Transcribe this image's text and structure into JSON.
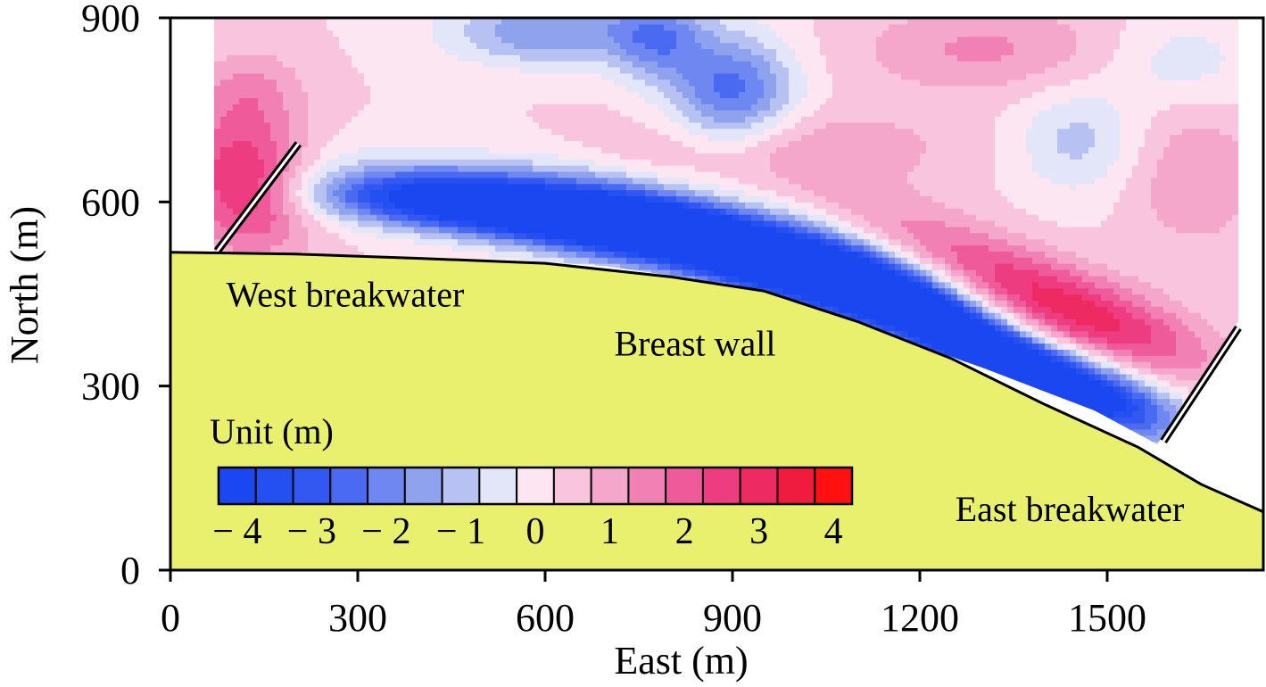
{
  "chart_data": {
    "type": "heatmap",
    "xlabel": "East (m)",
    "ylabel": "North (m)",
    "xlim": [
      0,
      1750
    ],
    "ylim": [
      0,
      900
    ],
    "xticks": [
      0,
      300,
      600,
      900,
      1200,
      1500
    ],
    "yticks": [
      0,
      300,
      600,
      900
    ],
    "colorbar": {
      "title": "Unit (m)",
      "min": -4.25,
      "max": 4.25,
      "levels": 17,
      "ticks": [
        {
          "value": -4,
          "label": "− 4"
        },
        {
          "value": -3,
          "label": "− 3"
        },
        {
          "value": -2,
          "label": "− 2"
        },
        {
          "value": -1,
          "label": "− 1"
        },
        {
          "value": 0,
          "label": "0"
        },
        {
          "value": 1,
          "label": "1"
        },
        {
          "value": 2,
          "label": "2"
        },
        {
          "value": 3,
          "label": "3"
        },
        {
          "value": 4,
          "label": "4"
        }
      ],
      "colors": [
        "#1a47f0",
        "#2450f2",
        "#3358f2",
        "#4a6af2",
        "#6f87f1",
        "#8fa2ee",
        "#b7c2f2",
        "#e3e6f8",
        "#fbe6f1",
        "#f8c4de",
        "#f4a6cb",
        "#f181b5",
        "#ef5a9b",
        "#ee3c80",
        "#ee2a62",
        "#f01c3f",
        "#ff1111"
      ]
    },
    "regions": [
      {
        "label": "West breakwater",
        "x": 280,
        "y": 430
      },
      {
        "label": "Breast wall",
        "x": 840,
        "y": 350
      },
      {
        "label": "East breakwater",
        "x": 1440,
        "y": 80
      }
    ],
    "shoreline": [
      [
        0,
        518
      ],
      [
        200,
        515
      ],
      [
        400,
        508
      ],
      [
        600,
        500
      ],
      [
        800,
        478
      ],
      [
        950,
        455
      ],
      [
        1100,
        405
      ],
      [
        1250,
        345
      ],
      [
        1400,
        270
      ],
      [
        1550,
        200
      ],
      [
        1650,
        140
      ],
      [
        1750,
        95
      ]
    ],
    "domain_outline": [
      [
        70,
        900
      ],
      [
        1710,
        900
      ],
      [
        1710,
        405
      ],
      [
        1580,
        205
      ],
      [
        1480,
        260
      ],
      [
        1300,
        330
      ],
      [
        1100,
        400
      ],
      [
        900,
        445
      ],
      [
        800,
        480
      ],
      [
        700,
        495
      ],
      [
        560,
        505
      ],
      [
        300,
        510
      ],
      [
        70,
        520
      ]
    ],
    "west_breakwater": [
      [
        75,
        520
      ],
      [
        205,
        695
      ]
    ],
    "east_breakwater": [
      [
        1590,
        210
      ],
      [
        1710,
        395
      ]
    ],
    "field": [
      {
        "x": 820,
        "y": 540,
        "sx": 260,
        "sy": 40,
        "rot": -12,
        "v": -4.1
      },
      {
        "x": 1040,
        "y": 470,
        "sx": 220,
        "sy": 38,
        "rot": -22,
        "v": -4.2
      },
      {
        "x": 1280,
        "y": 380,
        "sx": 170,
        "sy": 32,
        "rot": -32,
        "v": -4.1
      },
      {
        "x": 1470,
        "y": 295,
        "sx": 120,
        "sy": 35,
        "rot": -20,
        "v": -3.8
      },
      {
        "x": 600,
        "y": 580,
        "sx": 190,
        "sy": 35,
        "rot": -8,
        "v": -3.2
      },
      {
        "x": 400,
        "y": 600,
        "sx": 150,
        "sy": 30,
        "rot": -3,
        "v": -2.4
      },
      {
        "x": 900,
        "y": 780,
        "sx": 70,
        "sy": 65,
        "rot": 0,
        "v": -2.7
      },
      {
        "x": 600,
        "y": 880,
        "sx": 110,
        "sy": 40,
        "rot": 0,
        "v": -2.0
      },
      {
        "x": 780,
        "y": 870,
        "sx": 55,
        "sy": 50,
        "rot": 0,
        "v": -2.0
      },
      {
        "x": 1450,
        "y": 700,
        "sx": 70,
        "sy": 60,
        "rot": 0,
        "v": -1.2
      },
      {
        "x": 1620,
        "y": 830,
        "sx": 80,
        "sy": 50,
        "rot": 0,
        "v": -0.8
      },
      {
        "x": 1330,
        "y": 480,
        "sx": 200,
        "sy": 45,
        "rot": -25,
        "v": 1.6
      },
      {
        "x": 1480,
        "y": 410,
        "sx": 140,
        "sy": 45,
        "rot": -20,
        "v": 1.8
      },
      {
        "x": 1000,
        "y": 690,
        "sx": 190,
        "sy": 45,
        "rot": 0,
        "v": 0.9
      },
      {
        "x": 120,
        "y": 630,
        "sx": 70,
        "sy": 80,
        "rot": 30,
        "v": 2.8
      },
      {
        "x": 130,
        "y": 780,
        "sx": 60,
        "sy": 50,
        "rot": 0,
        "v": 1.0
      },
      {
        "x": 1300,
        "y": 850,
        "sx": 140,
        "sy": 50,
        "rot": 0,
        "v": 1.1
      },
      {
        "x": 1640,
        "y": 640,
        "sx": 70,
        "sy": 80,
        "rot": 0,
        "v": 1.0
      }
    ]
  }
}
